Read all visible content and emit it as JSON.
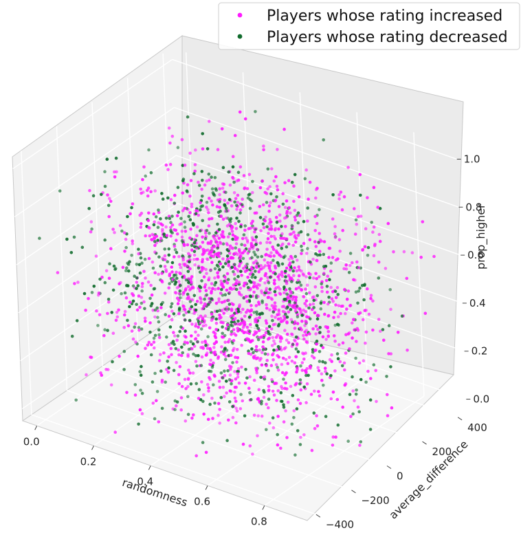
{
  "chart_data": {
    "type": "scatter",
    "projection": "3d",
    "title": "",
    "xlabel": "randomness",
    "ylabel": "average_difference",
    "zlabel": "prop_higher",
    "xlim": [
      -0.05,
      0.95
    ],
    "ylim": [
      -450,
      450
    ],
    "zlim": [
      -0.05,
      1.05
    ],
    "x_ticks": [
      "0.0",
      "0.2",
      "0.4",
      "0.6",
      "0.8"
    ],
    "y_ticks": [
      "−400",
      "−200",
      "0",
      "200",
      "400"
    ],
    "z_ticks": [
      "0.0",
      "0.2",
      "0.4",
      "0.6",
      "0.8",
      "1.0"
    ],
    "grid": true,
    "legend_position": "top-right",
    "series": [
      {
        "name": "Players whose rating increased",
        "color": "#ff1aff",
        "approx_points": 3500
      },
      {
        "name": "Players whose rating decreased",
        "color": "#106b2c",
        "approx_points": 1700
      }
    ]
  }
}
